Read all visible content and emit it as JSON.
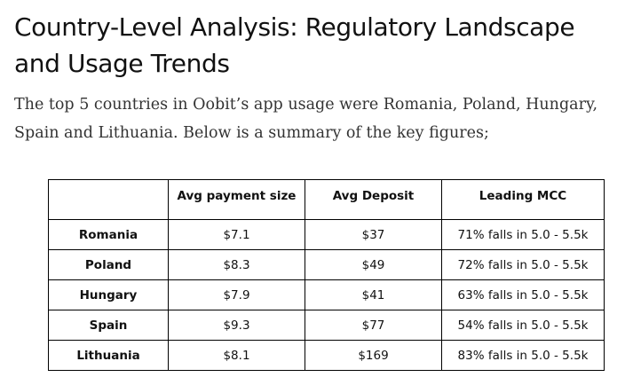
{
  "heading": "Country-Level Analysis: Regulatory Landscape and Usage Trends",
  "intro": "The top 5 countries in Oobit’s app usage were Romania, Poland, Hungary, Spain and Lithuania. Below is a summary of the key figures;",
  "table": {
    "corner": "",
    "headers": [
      "Avg payment size",
      "Avg Deposit",
      "Leading MCC"
    ],
    "rows": [
      {
        "country": "Romania",
        "payment": "$7.1",
        "deposit": "$37",
        "mcc": "71% falls in 5.0 - 5.5k"
      },
      {
        "country": "Poland",
        "payment": "$8.3",
        "deposit": "$49",
        "mcc": "72% falls in 5.0 - 5.5k"
      },
      {
        "country": "Hungary",
        "payment": "$7.9",
        "deposit": "$41",
        "mcc": "63% falls in 5.0 - 5.5k"
      },
      {
        "country": "Spain",
        "payment": "$9.3",
        "deposit": "$77",
        "mcc": "54% falls in 5.0 - 5.5k"
      },
      {
        "country": "Lithuania",
        "payment": "$8.1",
        "deposit": "$169",
        "mcc": "83% falls in 5.0 - 5.5k"
      }
    ]
  }
}
